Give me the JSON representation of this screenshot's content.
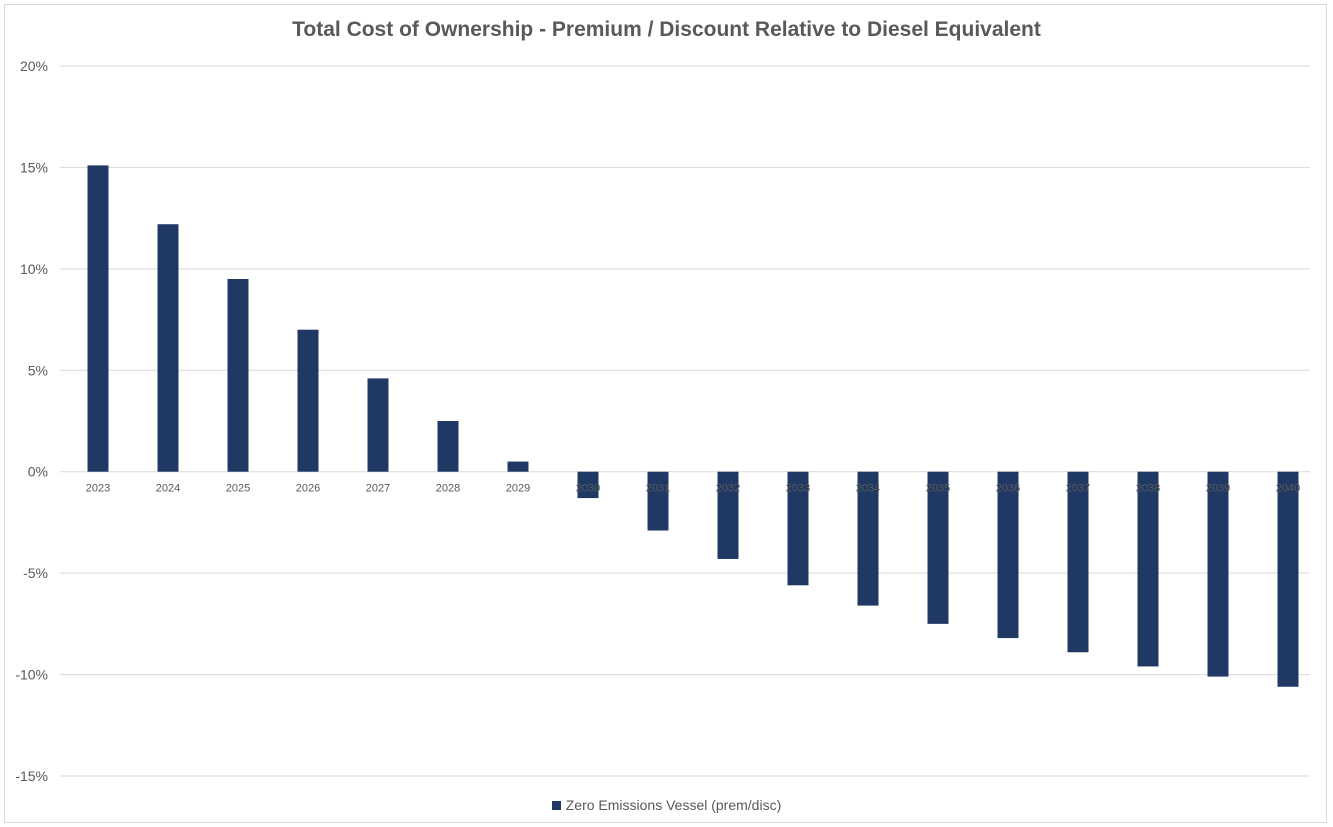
{
  "chart_data": {
    "type": "bar",
    "title": "Total Cost of Ownership - Premium / Discount Relative to Diesel Equivalent",
    "categories": [
      "2023",
      "2024",
      "2025",
      "2026",
      "2027",
      "2028",
      "2029",
      "2030",
      "2031",
      "2032",
      "2033",
      "2034",
      "2035",
      "2036",
      "2037",
      "2038",
      "2039",
      "2040"
    ],
    "series": [
      {
        "name": "Zero Emissions Vessel (prem/disc)",
        "values": [
          15.1,
          12.2,
          9.5,
          7.0,
          4.6,
          2.5,
          0.5,
          -1.3,
          -2.9,
          -4.3,
          -5.6,
          -6.6,
          -7.5,
          -8.2,
          -8.9,
          -9.6,
          -10.1,
          -10.6
        ]
      }
    ],
    "ylim": [
      -15,
      20
    ],
    "yticks": [
      "20%",
      "15%",
      "10%",
      "5%",
      "0%",
      "-5%",
      "-10%",
      "-15%"
    ],
    "ytick_values": [
      20,
      15,
      10,
      5,
      0,
      -5,
      -10,
      -15
    ],
    "grid": true,
    "legend_position": "bottom",
    "colors": {
      "bar": "#1f3864",
      "grid": "#d9d9d9",
      "text": "#595959"
    }
  }
}
